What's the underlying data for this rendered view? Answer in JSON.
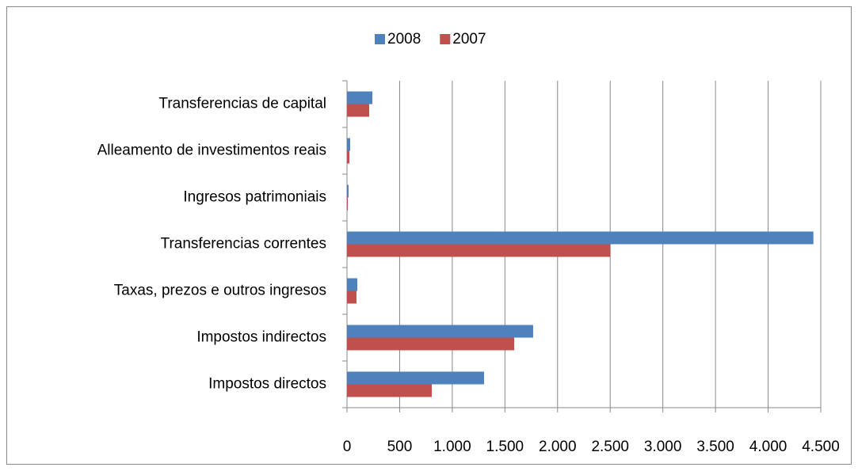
{
  "chart_data": {
    "type": "hbar",
    "categories": [
      "Transferencias de capital",
      "Alleamento de investimentos reais",
      "Ingresos patrimoniais",
      "Transferencias correntes",
      "Taxas, prezos e outros ingresos",
      "Impostos indirectos",
      "Impostos directos"
    ],
    "series": [
      {
        "name": "2008",
        "color": "#4f81bd",
        "values": [
          241,
          30,
          15,
          4430,
          98,
          1768,
          1302
        ]
      },
      {
        "name": "2007",
        "color": "#c0504d",
        "values": [
          211,
          23,
          8,
          2500,
          90,
          1588,
          805
        ]
      }
    ],
    "xlim": [
      0,
      4500
    ],
    "xticks": [
      0,
      500,
      {
        "value": 1000,
        "label": "1.000"
      },
      {
        "value": 1500,
        "label": "1.500"
      },
      {
        "value": 2000,
        "label": "2.000"
      },
      {
        "value": 2500,
        "label": "2.500"
      },
      {
        "value": 3000,
        "label": "3.000"
      },
      {
        "value": 3500,
        "label": "3.500"
      },
      {
        "value": 4000,
        "label": "4.000"
      },
      {
        "value": 4500,
        "label": "4.500"
      }
    ],
    "grid": true,
    "legend": "top"
  }
}
